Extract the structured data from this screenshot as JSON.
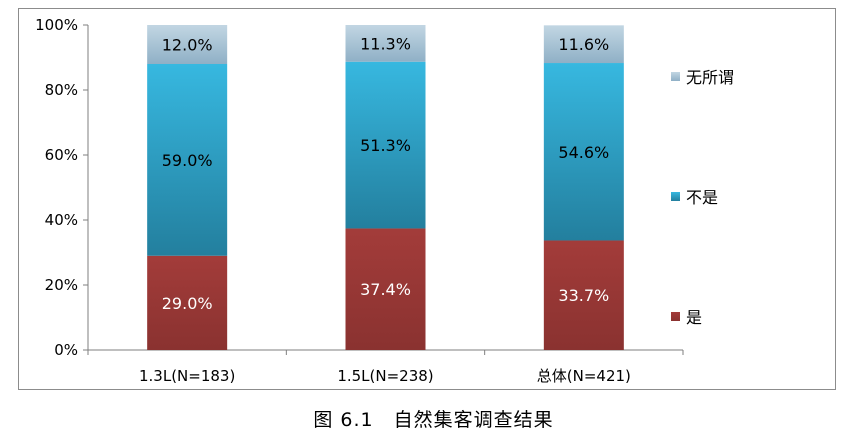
{
  "caption": "图 6.1　自然集客调查结果",
  "chart_data": {
    "type": "bar",
    "stacked": true,
    "percent": true,
    "categories": [
      "1.3L(N=183)",
      "1.5L(N=238)",
      "总体(N=421)"
    ],
    "series": [
      {
        "name": "是",
        "values": [
          29.0,
          37.4,
          33.7
        ],
        "labels": [
          "29.0%",
          "37.4%",
          "33.7%"
        ],
        "color": "#953735",
        "label_color": "#ffffff"
      },
      {
        "name": "不是",
        "values": [
          59.0,
          51.3,
          54.6
        ],
        "labels": [
          "59.0%",
          "51.3%",
          "54.6%"
        ],
        "color": "#31b0d6",
        "label_color": "#000000"
      },
      {
        "name": "无所谓",
        "values": [
          12.0,
          11.3,
          11.6
        ],
        "labels": [
          "12.0%",
          "11.3%",
          "11.6%"
        ],
        "color": "#a8c6d8",
        "label_color": "#000000"
      }
    ],
    "y_ticks": [
      "0%",
      "20%",
      "40%",
      "60%",
      "80%",
      "100%"
    ],
    "ylim": [
      0,
      100
    ],
    "grid": false,
    "legend_position": "right"
  }
}
